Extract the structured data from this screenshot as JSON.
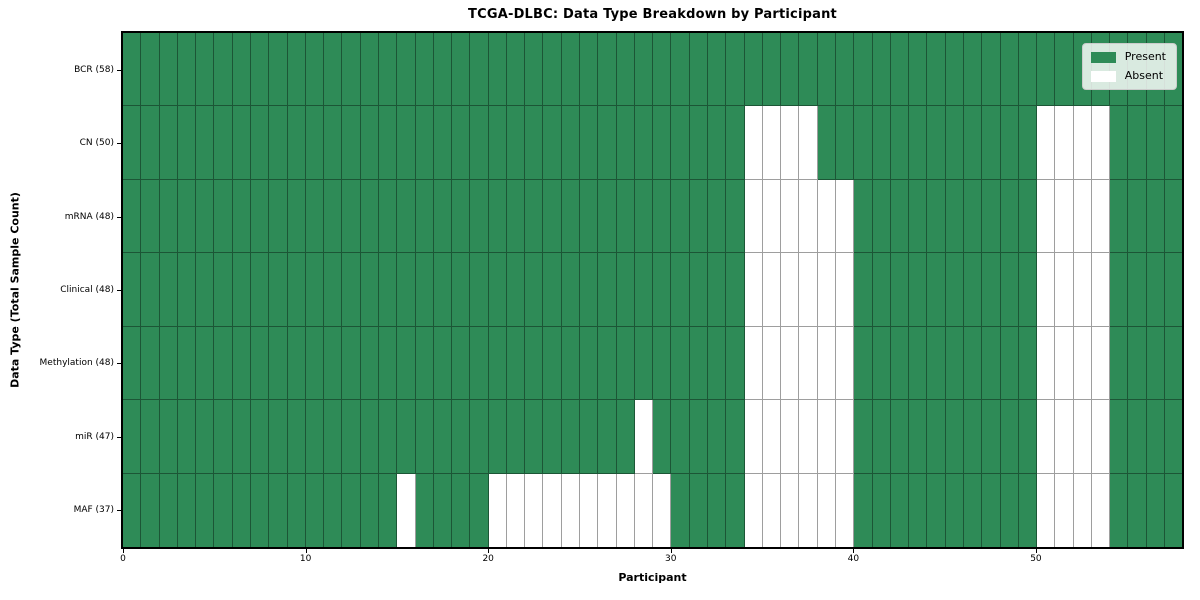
{
  "chart_data": {
    "type": "heatmap",
    "title": "TCGA-DLBC: Data Type Breakdown by Participant",
    "xlabel": "Participant",
    "ylabel": "Data Type (Total Sample Count)",
    "n_participants": 58,
    "x_ticks": [
      0,
      10,
      20,
      30,
      40,
      50
    ],
    "grid": "cell-borders",
    "rows": [
      {
        "name": "BCR",
        "label": "BCR (58)",
        "present_count": 58,
        "absent": []
      },
      {
        "name": "CN",
        "label": "CN (50)",
        "present_count": 50,
        "absent": [
          34,
          35,
          36,
          37,
          50,
          51,
          52,
          53
        ]
      },
      {
        "name": "mRNA",
        "label": "mRNA (48)",
        "present_count": 48,
        "absent": [
          34,
          35,
          36,
          37,
          38,
          39,
          50,
          51,
          52,
          53
        ]
      },
      {
        "name": "Clinical",
        "label": "Clinical (48)",
        "present_count": 48,
        "absent": [
          34,
          35,
          36,
          37,
          38,
          39,
          50,
          51,
          52,
          53
        ]
      },
      {
        "name": "Methylation",
        "label": "Methylation (48)",
        "present_count": 48,
        "absent": [
          34,
          35,
          36,
          37,
          38,
          39,
          50,
          51,
          52,
          53
        ]
      },
      {
        "name": "miR",
        "label": "miR (47)",
        "present_count": 47,
        "absent": [
          28,
          34,
          35,
          36,
          37,
          38,
          39,
          50,
          51,
          52,
          53
        ]
      },
      {
        "name": "MAF",
        "label": "MAF (37)",
        "present_count": 37,
        "absent": [
          15,
          20,
          21,
          22,
          23,
          24,
          25,
          26,
          27,
          28,
          29,
          34,
          35,
          36,
          37,
          38,
          39,
          50,
          51,
          52,
          53
        ]
      }
    ],
    "colors": {
      "present": "#2E8B57",
      "absent": "#FFFFFF",
      "cell_edge": "rgba(0,0,0,0.38)",
      "spine": "#000000"
    },
    "legend": {
      "position": "upper right",
      "items": [
        {
          "label": "Present",
          "color": "#2E8B57"
        },
        {
          "label": "Absent",
          "color": "#FFFFFF"
        }
      ]
    }
  }
}
